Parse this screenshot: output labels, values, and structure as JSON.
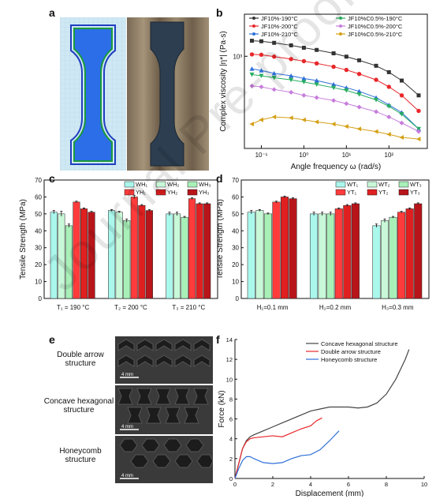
{
  "panel_letters": {
    "a": "a",
    "b": "b",
    "c": "c",
    "d": "d",
    "e": "e",
    "f": "f"
  },
  "watermark": "Journal Pre-proof",
  "colors": {
    "jf190": "#333333",
    "jf200": "#e8272a",
    "jf210": "#2f6fd8",
    "c190": "#27ae60",
    "c200": "#c77ddb",
    "c210": "#d4a017",
    "wh": "#9ff5e8",
    "yh": "#e8272a",
    "wh_dark": "#6fe3c8",
    "yh_dark": "#b8151a",
    "f_concave": "#444444",
    "f_double": "#e8272a",
    "f_honey": "#2f6fd8"
  },
  "panel_e": {
    "labels": [
      "Double arrow structure",
      "Concave hexagonal structure",
      "Honeycomb structure"
    ],
    "scalebar": "4 mm"
  },
  "chart_data": [
    {
      "id": "b",
      "type": "scatter",
      "xlabel": "Angle frequency ω (rad/s)",
      "ylabel": "Complex viscosity |η*| (Pa·s)",
      "xscale": "log",
      "yscale": "log",
      "xticks": [
        "10⁻¹",
        "10⁰",
        "10¹",
        "10²"
      ],
      "yticks": [
        "10³"
      ],
      "legend": [
        "JF10%-190°C",
        "JF10%C0.5%-190°C",
        "JF10%-200°C",
        "JF10%C0.5%-200°C",
        "JF10%-210°C",
        "JF10%C0.5%-210°C"
      ],
      "series": [
        {
          "name": "JF10%-190°C",
          "marker": "square",
          "x": [
            0.06,
            0.1,
            0.2,
            0.5,
            1,
            2,
            5,
            10,
            20,
            50,
            100,
            200,
            500
          ],
          "y": [
            1500,
            1480,
            1420,
            1330,
            1250,
            1180,
            1080,
            990,
            900,
            780,
            660,
            530,
            360
          ]
        },
        {
          "name": "JF10%-200°C",
          "marker": "circle",
          "x": [
            0.06,
            0.1,
            0.2,
            0.5,
            1,
            2,
            5,
            10,
            20,
            50,
            100,
            200,
            500
          ],
          "y": [
            1050,
            1040,
            990,
            930,
            880,
            830,
            760,
            700,
            630,
            540,
            450,
            360,
            240
          ]
        },
        {
          "name": "JF10%-210°C",
          "marker": "triangle",
          "x": [
            0.06,
            0.1,
            0.2,
            0.5,
            1,
            2,
            5,
            10,
            20,
            50,
            100,
            200,
            500
          ],
          "y": [
            720,
            690,
            640,
            600,
            560,
            530,
            480,
            440,
            400,
            340,
            280,
            230,
            150
          ]
        },
        {
          "name": "JF10%C0.5%-190°C",
          "marker": "triangle-down",
          "x": [
            0.06,
            0.1,
            0.2,
            0.5,
            1,
            2,
            5,
            10,
            20,
            50,
            100,
            200,
            500
          ],
          "y": [
            620,
            600,
            570,
            540,
            510,
            480,
            440,
            410,
            370,
            320,
            270,
            220,
            150
          ]
        },
        {
          "name": "JF10%C0.5%-200°C",
          "marker": "diamond",
          "x": [
            0.06,
            0.1,
            0.2,
            0.5,
            1,
            2,
            5,
            10,
            20,
            50,
            100,
            200,
            500
          ],
          "y": [
            460,
            450,
            420,
            390,
            360,
            340,
            315,
            290,
            265,
            235,
            205,
            175,
            140
          ]
        },
        {
          "name": "JF10%C0.5%-210°C",
          "marker": "tri-left",
          "x": [
            0.06,
            0.1,
            0.2,
            0.5,
            1,
            2,
            5,
            10,
            20,
            50,
            100,
            200,
            500
          ],
          "y": [
            170,
            190,
            205,
            200,
            190,
            180,
            170,
            160,
            150,
            140,
            130,
            120,
            115
          ]
        }
      ]
    },
    {
      "id": "c",
      "type": "bar",
      "ylabel": "Tensile Strength (MPa)",
      "ylim": [
        0,
        70
      ],
      "yticks": [
        0,
        10,
        20,
        30,
        40,
        50,
        60,
        70
      ],
      "categories": [
        "T₁ = 190 °C",
        "T₂ = 200 °C",
        "T₃ = 210 °C"
      ],
      "series": [
        {
          "name": "WH₁",
          "values": [
            51,
            52,
            50
          ],
          "err": [
            1,
            0.5,
            1
          ]
        },
        {
          "name": "WH₂",
          "values": [
            50,
            51,
            50
          ],
          "err": [
            1.5,
            0.5,
            1
          ]
        },
        {
          "name": "WH₃",
          "values": [
            43,
            46,
            48
          ],
          "err": [
            1,
            1,
            0.5
          ]
        },
        {
          "name": "YH₁",
          "values": [
            57,
            60,
            59
          ],
          "err": [
            0.5,
            1,
            0.5
          ]
        },
        {
          "name": "YH₂",
          "values": [
            53,
            55,
            56
          ],
          "err": [
            0.5,
            0.5,
            0.5
          ]
        },
        {
          "name": "YH₃",
          "values": [
            51,
            52,
            56
          ],
          "err": [
            0.5,
            0.5,
            0.5
          ]
        }
      ]
    },
    {
      "id": "d",
      "type": "bar",
      "ylabel": "Tensile Strength (MPa)",
      "ylim": [
        0,
        70
      ],
      "yticks": [
        0,
        10,
        20,
        30,
        40,
        50,
        60,
        70
      ],
      "categories": [
        "H₁=0.1 mm",
        "H₂=0.2 mm",
        "H₃=0.3 mm"
      ],
      "series": [
        {
          "name": "WT₁",
          "values": [
            51,
            50,
            43
          ],
          "err": [
            1,
            1,
            1
          ]
        },
        {
          "name": "WT₂",
          "values": [
            52,
            50,
            46
          ],
          "err": [
            0.5,
            1,
            1
          ]
        },
        {
          "name": "WT₃",
          "values": [
            50,
            50,
            48
          ],
          "err": [
            0.5,
            1,
            0.5
          ]
        },
        {
          "name": "YT₁",
          "values": [
            57,
            53,
            51
          ],
          "err": [
            0.5,
            0.5,
            0.5
          ]
        },
        {
          "name": "YT₂",
          "values": [
            60,
            55,
            53
          ],
          "err": [
            0.5,
            0.5,
            0.5
          ]
        },
        {
          "name": "YT₃",
          "values": [
            59,
            56,
            56
          ],
          "err": [
            0.5,
            0.5,
            0.5
          ]
        }
      ]
    },
    {
      "id": "f",
      "type": "line",
      "xlabel": "Displacement (mm)",
      "ylabel": "Force (kN)",
      "xlim": [
        0,
        10
      ],
      "ylim": [
        0,
        14
      ],
      "xticks": [
        0,
        2,
        4,
        6,
        8,
        10
      ],
      "yticks": [
        0,
        2,
        4,
        6,
        8,
        10,
        12,
        14
      ],
      "series": [
        {
          "name": "Concave hexagonal structure",
          "x": [
            0,
            0.2,
            0.4,
            0.6,
            0.8,
            1,
            1.5,
            2,
            2.5,
            3,
            3.5,
            4,
            4.5,
            5,
            5.5,
            6,
            6.5,
            7,
            7.5,
            8,
            8.5,
            9,
            9.2
          ],
          "y": [
            0,
            1.5,
            3,
            3.8,
            4.2,
            4.4,
            4.8,
            5.2,
            5.6,
            6,
            6.4,
            6.8,
            7,
            7.2,
            7.2,
            7.2,
            7.1,
            7.2,
            7.6,
            8.5,
            10,
            12,
            13
          ]
        },
        {
          "name": "Double arrow structure",
          "x": [
            0,
            0.2,
            0.4,
            0.6,
            0.8,
            1,
            1.5,
            2,
            2.5,
            3,
            3.5,
            4,
            4.3,
            4.6
          ],
          "y": [
            0,
            1.5,
            3,
            3.7,
            4,
            4.1,
            4.2,
            4.3,
            4.2,
            4.6,
            5,
            5.3,
            5.8,
            6.1
          ]
        },
        {
          "name": "Honeycomb structure",
          "x": [
            0,
            0.2,
            0.4,
            0.6,
            0.8,
            1,
            1.5,
            2,
            2.5,
            3,
            3.5,
            4,
            4.5,
            5,
            5.5
          ],
          "y": [
            0,
            1,
            1.8,
            2.2,
            2.2,
            2,
            1.6,
            1.5,
            1.6,
            2,
            2.3,
            2.4,
            2.9,
            3.8,
            4.8
          ]
        }
      ]
    }
  ]
}
